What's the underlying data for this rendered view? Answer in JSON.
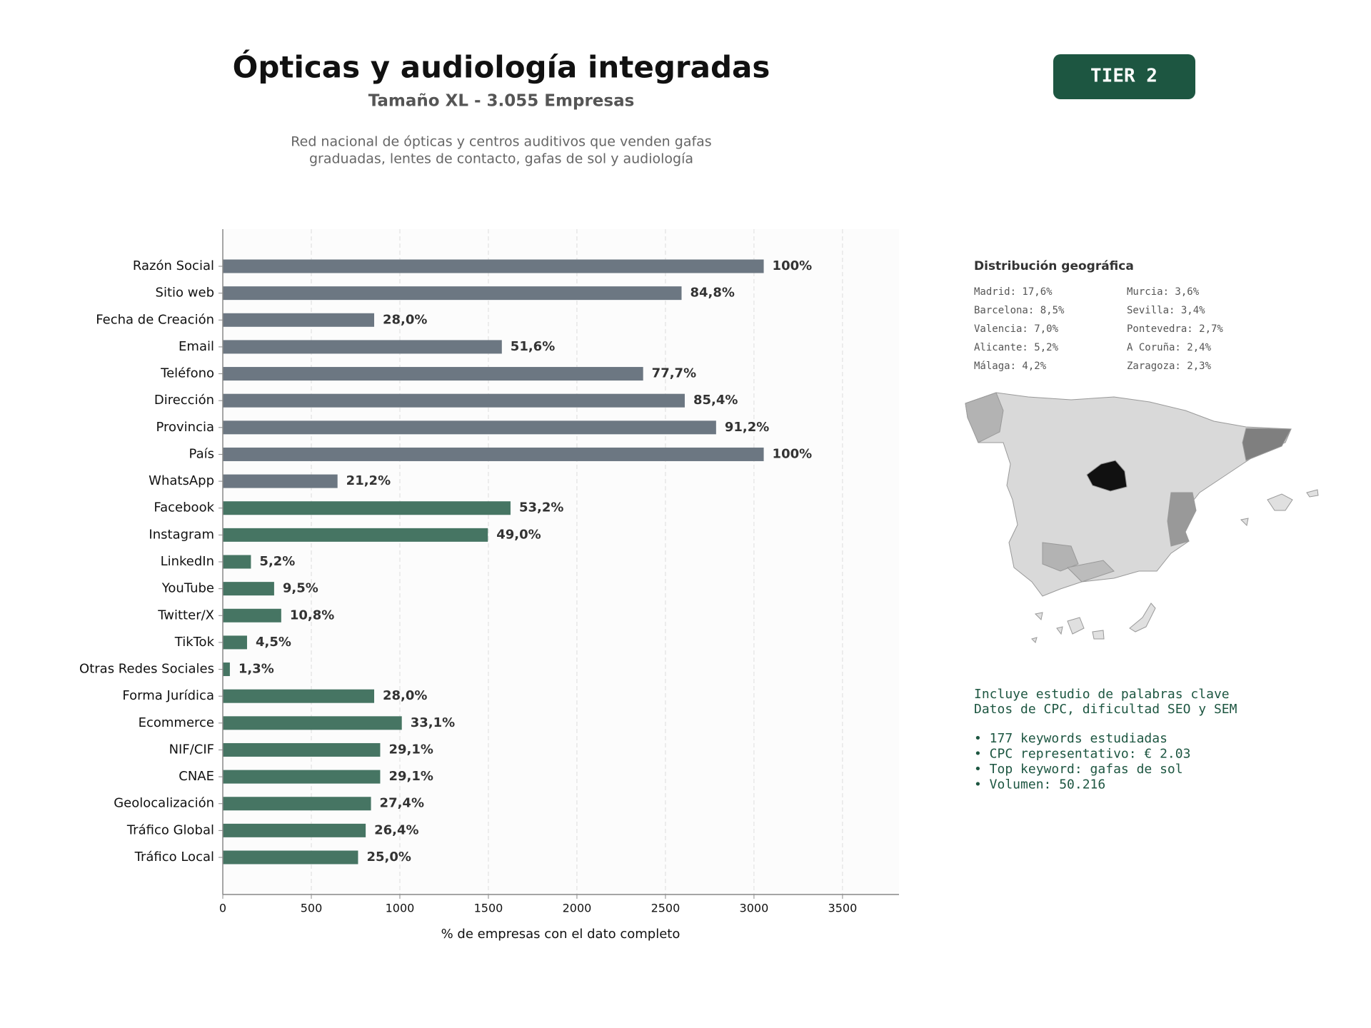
{
  "chart_data": {
    "type": "bar",
    "title": "Ópticas y audiología integradas",
    "subtitle": "Tamaño XL - 3.055 Empresas",
    "description": [
      "Red nacional de ópticas y centros auditivos que venden gafas",
      "graduadas, lentes de contacto, gafas de sol y audiología"
    ],
    "x_label": "% de empresas con el dato completo",
    "categories": [
      "Razón Social",
      "Sitio web",
      "Fecha de Creación",
      "Email",
      "Teléfono",
      "Dirección",
      "Provincia",
      "País",
      "WhatsApp",
      "Facebook",
      "Instagram",
      "LinkedIn",
      "YouTube",
      "Twitter/X",
      "TikTok",
      "Otras Redes Sociales",
      "Forma Jurídica",
      "Ecommerce",
      "NIF/CIF",
      "CNAE",
      "Geolocalización",
      "Tráfico Global",
      "Tráfico Local"
    ],
    "values": [
      3055,
      2591,
      855,
      1576,
      2374,
      2609,
      2786,
      3055,
      648,
      1625,
      1497,
      159,
      290,
      330,
      137,
      40,
      855,
      1011,
      889,
      889,
      837,
      807,
      764
    ],
    "value_labels": [
      "100%",
      "84,8%",
      "28,0%",
      "51,6%",
      "77,7%",
      "85,4%",
      "91,2%",
      "100%",
      "21,2%",
      "53,2%",
      "49,0%",
      "5,2%",
      "9,5%",
      "10,8%",
      "4,5%",
      "1,3%",
      "28,0%",
      "33,1%",
      "29,1%",
      "29,1%",
      "27,4%",
      "26,4%",
      "25,0%"
    ],
    "colors": [
      "#6c7782",
      "#6c7782",
      "#6c7782",
      "#6c7782",
      "#6c7782",
      "#6c7782",
      "#6c7782",
      "#6c7782",
      "#6c7782",
      "#467563",
      "#467563",
      "#467563",
      "#467563",
      "#467563",
      "#467563",
      "#467563",
      "#467563",
      "#467563",
      "#467563",
      "#467563",
      "#467563",
      "#467563",
      "#467563"
    ],
    "xlim": [
      0,
      3819
    ],
    "xticks": [
      0,
      500,
      1000,
      1500,
      2000,
      2500,
      3000,
      3500
    ],
    "grid": true
  },
  "badge": "TIER 2",
  "geo": {
    "title": "Distribución geográfica",
    "items": [
      "Madrid: 17,6%",
      "Barcelona: 8,5%",
      "Valencia: 7,0%",
      "Alicante: 5,2%",
      "Málaga: 4,2%",
      "Murcia: 3,6%",
      "Sevilla: 3,4%",
      "Pontevedra: 2,7%",
      "A Coruña: 2,4%",
      "Zaragoza: 2,3%"
    ]
  },
  "keywords": {
    "lines": [
      "Incluye estudio de palabras clave",
      "Datos de CPC, dificultad SEO y SEM"
    ],
    "bullets": [
      "• 177 keywords estudiadas",
      "• CPC representativo: € 2.03",
      "• Top keyword: gafas de sol",
      "• Volumen: 50.216"
    ]
  }
}
